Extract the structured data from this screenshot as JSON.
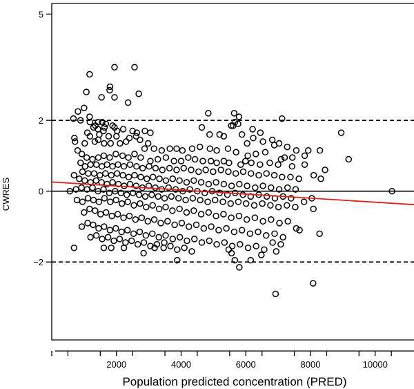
{
  "chart_data": {
    "type": "scatter",
    "title": "",
    "xlabel": "Population predicted concentration (PRED)",
    "ylabel": "CWRES",
    "xlim": [
      0,
      11200
    ],
    "ylim": [
      -4.2,
      5.3
    ],
    "x_ticks": [
      2000,
      4000,
      6000,
      8000,
      10000
    ],
    "x_tick_labels": [
      "2000",
      "4000",
      "6000",
      "8000",
      "10000"
    ],
    "y_ticks": [
      -2,
      0,
      2,
      5
    ],
    "y_tick_labels": [
      "−2",
      "0",
      "2",
      "5"
    ],
    "grid": false,
    "reference_lines": [
      {
        "y": 0,
        "style": "solid",
        "color": "#000000"
      },
      {
        "y": 2,
        "style": "dashed",
        "color": "#000000"
      },
      {
        "y": -2,
        "style": "dashed",
        "color": "#000000"
      }
    ],
    "trend_line": {
      "x": [
        0,
        11200
      ],
      "y": [
        0.26,
        -0.38
      ],
      "color": "#e0201c"
    },
    "marker": {
      "shape": "open-circle",
      "color": "#000000"
    },
    "points": [
      [
        1170,
        3.3
      ],
      [
        1940,
        3.5
      ],
      [
        2560,
        3.5
      ],
      [
        1800,
        2.95
      ],
      [
        1790,
        2.85
      ],
      [
        1070,
        2.8
      ],
      [
        2690,
        2.75
      ],
      [
        1540,
        2.65
      ],
      [
        1940,
        2.65
      ],
      [
        2360,
        2.5
      ],
      [
        1000,
        2.35
      ],
      [
        810,
        2.25
      ],
      [
        1170,
        2.1
      ],
      [
        670,
        2.05
      ],
      [
        890,
        2.0
      ],
      [
        1180,
        1.95
      ],
      [
        1430,
        1.95
      ],
      [
        1560,
        1.95
      ],
      [
        1670,
        1.9
      ],
      [
        1290,
        1.8
      ],
      [
        1630,
        1.8
      ],
      [
        1350,
        1.85
      ],
      [
        1880,
        1.85
      ],
      [
        1940,
        1.8
      ],
      [
        1100,
        1.65
      ],
      [
        1430,
        1.75
      ],
      [
        1600,
        1.7
      ],
      [
        1470,
        1.6
      ],
      [
        1180,
        1.55
      ],
      [
        1760,
        1.55
      ],
      [
        2000,
        1.55
      ],
      [
        2210,
        1.75
      ],
      [
        2500,
        1.7
      ],
      [
        2630,
        1.65
      ],
      [
        2880,
        1.7
      ],
      [
        3050,
        1.65
      ],
      [
        700,
        1.5
      ],
      [
        2400,
        1.5
      ],
      [
        2610,
        1.55
      ],
      [
        2020,
        1.7
      ],
      [
        720,
        1.4
      ],
      [
        1020,
        1.35
      ],
      [
        1330,
        1.4
      ],
      [
        1440,
        1.45
      ],
      [
        1620,
        1.35
      ],
      [
        1820,
        1.35
      ],
      [
        2110,
        1.35
      ],
      [
        2300,
        1.4
      ],
      [
        2730,
        1.45
      ],
      [
        2980,
        1.35
      ],
      [
        2870,
        1.2
      ],
      [
        3160,
        1.2
      ],
      [
        3400,
        1.15
      ],
      [
        3650,
        1.2
      ],
      [
        3860,
        1.2
      ],
      [
        4040,
        1.15
      ],
      [
        4340,
        1.2
      ],
      [
        4580,
        1.25
      ],
      [
        4890,
        1.2
      ],
      [
        5100,
        1.15
      ],
      [
        5190,
        1.6
      ],
      [
        4640,
        1.8
      ],
      [
        4880,
        1.6
      ],
      [
        5320,
        1.55
      ],
      [
        5660,
        1.95
      ],
      [
        5550,
        1.85
      ],
      [
        5610,
        1.85
      ],
      [
        5760,
        1.9
      ],
      [
        5880,
        1.6
      ],
      [
        6210,
        1.75
      ],
      [
        6450,
        1.65
      ],
      [
        6530,
        1.4
      ],
      [
        6820,
        1.45
      ],
      [
        7030,
        1.35
      ],
      [
        7280,
        1.25
      ],
      [
        7560,
        1.15
      ],
      [
        7820,
        1.0
      ],
      [
        7930,
        1.15
      ],
      [
        8290,
        1.15
      ],
      [
        8950,
        1.65
      ],
      [
        9180,
        0.9
      ],
      [
        8450,
        0.6
      ],
      [
        8100,
        0.45
      ],
      [
        5640,
        2.2
      ],
      [
        5790,
        2.1
      ],
      [
        4840,
        2.2
      ],
      [
        7120,
        2.05
      ],
      [
        5450,
        1.2
      ],
      [
        5700,
        1.1
      ],
      [
        6040,
        1.35
      ],
      [
        6880,
        1.3
      ],
      [
        6230,
        1.5
      ],
      [
        6060,
        1.0
      ],
      [
        6600,
        1.1
      ],
      [
        6310,
        1.05
      ],
      [
        7200,
        0.95
      ],
      [
        7440,
        0.95
      ],
      [
        7090,
        0.9
      ],
      [
        5990,
        0.85
      ],
      [
        5320,
        0.85
      ],
      [
        800,
        1.15
      ],
      [
        930,
        1.05
      ],
      [
        1080,
        0.95
      ],
      [
        1260,
        0.9
      ],
      [
        1440,
        0.95
      ],
      [
        1610,
        1.0
      ],
      [
        1790,
        0.95
      ],
      [
        1980,
        1.05
      ],
      [
        2190,
        1.0
      ],
      [
        2370,
        0.95
      ],
      [
        2560,
        1.05
      ],
      [
        2750,
        0.95
      ],
      [
        3050,
        0.85
      ],
      [
        3280,
        0.9
      ],
      [
        3530,
        0.95
      ],
      [
        3780,
        0.85
      ],
      [
        4000,
        0.85
      ],
      [
        4220,
        0.95
      ],
      [
        4430,
        0.9
      ],
      [
        4670,
        0.85
      ],
      [
        4920,
        0.85
      ],
      [
        5100,
        0.8
      ],
      [
        5480,
        0.8
      ],
      [
        5840,
        0.75
      ],
      [
        6170,
        0.8
      ],
      [
        6440,
        0.75
      ],
      [
        6740,
        0.8
      ],
      [
        7000,
        0.75
      ],
      [
        7430,
        0.7
      ],
      [
        7820,
        0.75
      ],
      [
        890,
        0.8
      ],
      [
        1030,
        0.7
      ],
      [
        1200,
        0.75
      ],
      [
        1380,
        0.75
      ],
      [
        1550,
        0.7
      ],
      [
        1710,
        0.75
      ],
      [
        1880,
        0.7
      ],
      [
        2050,
        0.75
      ],
      [
        2230,
        0.7
      ],
      [
        2420,
        0.75
      ],
      [
        2620,
        0.7
      ],
      [
        2810,
        0.65
      ],
      [
        3010,
        0.7
      ],
      [
        3210,
        0.65
      ],
      [
        3420,
        0.6
      ],
      [
        3640,
        0.65
      ],
      [
        3860,
        0.6
      ],
      [
        4080,
        0.65
      ],
      [
        4310,
        0.6
      ],
      [
        4540,
        0.55
      ],
      [
        4760,
        0.6
      ],
      [
        4990,
        0.55
      ],
      [
        5230,
        0.6
      ],
      [
        5460,
        0.55
      ],
      [
        5690,
        0.5
      ],
      [
        5920,
        0.55
      ],
      [
        6160,
        0.5
      ],
      [
        6400,
        0.45
      ],
      [
        6640,
        0.5
      ],
      [
        6880,
        0.45
      ],
      [
        7120,
        0.4
      ],
      [
        7380,
        0.4
      ],
      [
        7640,
        0.35
      ],
      [
        8320,
        0.35
      ],
      [
        950,
        0.55
      ],
      [
        1130,
        0.5
      ],
      [
        1310,
        0.5
      ],
      [
        1490,
        0.45
      ],
      [
        1660,
        0.5
      ],
      [
        1840,
        0.45
      ],
      [
        2020,
        0.5
      ],
      [
        2200,
        0.45
      ],
      [
        2380,
        0.4
      ],
      [
        2560,
        0.45
      ],
      [
        2750,
        0.4
      ],
      [
        2940,
        0.35
      ],
      [
        3130,
        0.4
      ],
      [
        3330,
        0.35
      ],
      [
        3530,
        0.3
      ],
      [
        3740,
        0.35
      ],
      [
        3950,
        0.3
      ],
      [
        4170,
        0.25
      ],
      [
        4390,
        0.3
      ],
      [
        4620,
        0.25
      ],
      [
        4850,
        0.2
      ],
      [
        5080,
        0.25
      ],
      [
        5320,
        0.2
      ],
      [
        5560,
        0.15
      ],
      [
        5800,
        0.2
      ],
      [
        6040,
        0.15
      ],
      [
        6290,
        0.1
      ],
      [
        6530,
        0.15
      ],
      [
        6780,
        0.1
      ],
      [
        7030,
        0.05
      ],
      [
        7290,
        0.1
      ],
      [
        7540,
        0.05
      ],
      [
        690,
        0.45
      ],
      [
        850,
        0.35
      ],
      [
        1020,
        0.3
      ],
      [
        1200,
        0.25
      ],
      [
        1370,
        0.3
      ],
      [
        1540,
        0.25
      ],
      [
        1710,
        0.2
      ],
      [
        1880,
        0.25
      ],
      [
        2060,
        0.2
      ],
      [
        2240,
        0.15
      ],
      [
        2420,
        0.2
      ],
      [
        2610,
        0.15
      ],
      [
        2800,
        0.1
      ],
      [
        3000,
        0.15
      ],
      [
        3200,
        0.1
      ],
      [
        3400,
        0.05
      ],
      [
        3610,
        0.1
      ],
      [
        3830,
        0.05
      ],
      [
        4050,
        0.0
      ],
      [
        4270,
        0.05
      ],
      [
        4500,
        0.0
      ],
      [
        4730,
        -0.05
      ],
      [
        4960,
        0.0
      ],
      [
        5190,
        -0.05
      ],
      [
        5430,
        -0.1
      ],
      [
        5670,
        -0.05
      ],
      [
        5910,
        -0.1
      ],
      [
        6150,
        -0.15
      ],
      [
        6400,
        -0.1
      ],
      [
        6650,
        -0.15
      ],
      [
        6900,
        -0.2
      ],
      [
        7150,
        -0.15
      ],
      [
        7400,
        -0.2
      ],
      [
        10520,
        0.0
      ],
      [
        560,
        0.0
      ],
      [
        750,
        0.05
      ],
      [
        920,
        0.1
      ],
      [
        1090,
        0.05
      ],
      [
        1260,
        0.1
      ],
      [
        1430,
        0.0
      ],
      [
        1600,
        0.05
      ],
      [
        1780,
        -0.05
      ],
      [
        1960,
        0.0
      ],
      [
        2140,
        -0.05
      ],
      [
        2320,
        -0.1
      ],
      [
        2510,
        -0.05
      ],
      [
        2700,
        -0.1
      ],
      [
        2890,
        -0.15
      ],
      [
        3090,
        -0.1
      ],
      [
        3290,
        -0.15
      ],
      [
        3490,
        -0.2
      ],
      [
        3700,
        -0.15
      ],
      [
        3920,
        -0.2
      ],
      [
        4140,
        -0.25
      ],
      [
        4360,
        -0.2
      ],
      [
        4590,
        -0.25
      ],
      [
        4820,
        -0.3
      ],
      [
        5050,
        -0.25
      ],
      [
        5290,
        -0.3
      ],
      [
        5530,
        -0.35
      ],
      [
        5770,
        -0.3
      ],
      [
        6010,
        -0.35
      ],
      [
        6260,
        -0.4
      ],
      [
        6510,
        -0.35
      ],
      [
        6760,
        -0.4
      ],
      [
        7010,
        -0.45
      ],
      [
        7270,
        -0.4
      ],
      [
        7530,
        -0.45
      ],
      [
        7800,
        -0.3
      ],
      [
        8040,
        -0.2
      ],
      [
        8090,
        -0.5
      ],
      [
        780,
        -0.25
      ],
      [
        950,
        -0.3
      ],
      [
        1120,
        -0.2
      ],
      [
        1290,
        -0.25
      ],
      [
        1460,
        -0.3
      ],
      [
        1630,
        -0.2
      ],
      [
        1810,
        -0.3
      ],
      [
        1990,
        -0.25
      ],
      [
        2170,
        -0.35
      ],
      [
        2350,
        -0.3
      ],
      [
        2540,
        -0.4
      ],
      [
        2730,
        -0.35
      ],
      [
        2920,
        -0.45
      ],
      [
        3120,
        -0.4
      ],
      [
        3320,
        -0.5
      ],
      [
        3520,
        -0.45
      ],
      [
        3730,
        -0.55
      ],
      [
        3950,
        -0.5
      ],
      [
        4170,
        -0.6
      ],
      [
        4390,
        -0.55
      ],
      [
        4620,
        -0.65
      ],
      [
        4850,
        -0.6
      ],
      [
        5080,
        -0.7
      ],
      [
        5310,
        -0.65
      ],
      [
        5550,
        -0.75
      ],
      [
        5790,
        -0.7
      ],
      [
        6030,
        -0.8
      ],
      [
        6280,
        -0.75
      ],
      [
        6530,
        -0.85
      ],
      [
        6780,
        -0.8
      ],
      [
        7040,
        -0.9
      ],
      [
        7300,
        -0.85
      ],
      [
        7560,
        -1.05
      ],
      [
        7660,
        -1.1
      ],
      [
        1000,
        -0.6
      ],
      [
        1170,
        -0.5
      ],
      [
        1340,
        -0.55
      ],
      [
        1510,
        -0.65
      ],
      [
        1680,
        -0.6
      ],
      [
        1860,
        -0.7
      ],
      [
        2040,
        -0.65
      ],
      [
        2220,
        -0.75
      ],
      [
        2400,
        -0.7
      ],
      [
        2590,
        -0.8
      ],
      [
        2780,
        -0.75
      ],
      [
        2970,
        -0.85
      ],
      [
        3170,
        -0.8
      ],
      [
        3370,
        -0.9
      ],
      [
        3580,
        -0.85
      ],
      [
        3800,
        -0.95
      ],
      [
        4020,
        -0.9
      ],
      [
        4240,
        -1.0
      ],
      [
        4470,
        -0.95
      ],
      [
        4700,
        -1.05
      ],
      [
        4930,
        -1.0
      ],
      [
        5160,
        -1.1
      ],
      [
        5400,
        -1.05
      ],
      [
        5640,
        -1.15
      ],
      [
        5880,
        -1.1
      ],
      [
        6130,
        -1.2
      ],
      [
        6380,
        -1.15
      ],
      [
        6630,
        -1.25
      ],
      [
        6890,
        -1.2
      ],
      [
        7150,
        -1.3
      ],
      [
        930,
        -1.0
      ],
      [
        1110,
        -0.9
      ],
      [
        1280,
        -0.95
      ],
      [
        1450,
        -1.05
      ],
      [
        1620,
        -1.0
      ],
      [
        1800,
        -1.1
      ],
      [
        1980,
        -1.05
      ],
      [
        2160,
        -1.15
      ],
      [
        2340,
        -1.1
      ],
      [
        2530,
        -1.2
      ],
      [
        2720,
        -1.15
      ],
      [
        2910,
        -1.25
      ],
      [
        3110,
        -1.2
      ],
      [
        3310,
        -1.3
      ],
      [
        3520,
        -1.25
      ],
      [
        3740,
        -1.35
      ],
      [
        3960,
        -1.3
      ],
      [
        4180,
        -1.4
      ],
      [
        4410,
        -1.35
      ],
      [
        4640,
        -1.45
      ],
      [
        4870,
        -1.4
      ],
      [
        5100,
        -1.5
      ],
      [
        5340,
        -1.45
      ],
      [
        5580,
        -1.55
      ],
      [
        5820,
        -1.5
      ],
      [
        6070,
        -1.6
      ],
      [
        6320,
        -1.55
      ],
      [
        6570,
        -1.65
      ],
      [
        6830,
        -1.45
      ],
      [
        7080,
        -1.5
      ],
      [
        8280,
        -1.2
      ],
      [
        1200,
        -1.3
      ],
      [
        1380,
        -1.25
      ],
      [
        1560,
        -1.35
      ],
      [
        1740,
        -1.3
      ],
      [
        1920,
        -1.4
      ],
      [
        2100,
        -1.35
      ],
      [
        2280,
        -1.45
      ],
      [
        2470,
        -1.4
      ],
      [
        2660,
        -1.5
      ],
      [
        2850,
        -1.45
      ],
      [
        3050,
        -1.55
      ],
      [
        3250,
        -1.5
      ],
      [
        3460,
        -1.6
      ],
      [
        3670,
        -1.55
      ],
      [
        3880,
        -1.65
      ],
      [
        4100,
        -1.6
      ],
      [
        4330,
        -1.7
      ],
      [
        5470,
        -1.65
      ],
      [
        5560,
        -1.75
      ],
      [
        6480,
        -1.8
      ],
      [
        6940,
        -1.7
      ],
      [
        3880,
        -1.95
      ],
      [
        5660,
        -1.95
      ],
      [
        6150,
        -1.95
      ],
      [
        5800,
        -2.15
      ],
      [
        690,
        -1.6
      ],
      [
        1610,
        -1.6
      ],
      [
        1840,
        -1.6
      ],
      [
        2230,
        -1.6
      ],
      [
        2840,
        -1.75
      ],
      [
        3180,
        -1.6
      ],
      [
        3480,
        -1.45
      ],
      [
        8080,
        -2.6
      ],
      [
        6920,
        -2.9
      ]
    ]
  }
}
